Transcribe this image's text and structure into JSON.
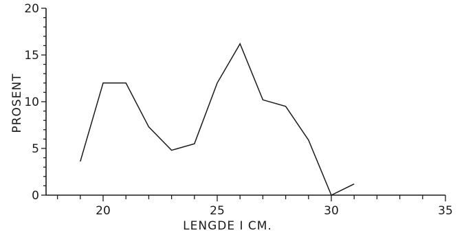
{
  "chart_data": {
    "type": "line",
    "title": "",
    "xlabel": "LENGDE I CM.",
    "ylabel": "PROSENT",
    "xlim": [
      17.5,
      35
    ],
    "ylim": [
      0,
      20
    ],
    "x_ticks": [
      20,
      25,
      30,
      35
    ],
    "x_minor_ticks": [
      18,
      19,
      21,
      22,
      23,
      24,
      26,
      27,
      28,
      29,
      31,
      32,
      33,
      34
    ],
    "y_ticks": [
      0,
      5,
      10,
      15,
      20
    ],
    "y_minor_ticks": [
      1,
      2,
      3,
      4,
      6,
      7,
      8,
      9,
      11,
      12,
      13,
      14,
      16,
      17,
      18,
      19
    ],
    "grid": false,
    "series": [
      {
        "x": [
          19,
          20,
          21,
          22,
          23,
          24,
          25,
          26,
          27,
          28,
          29,
          30,
          31
        ],
        "y": [
          3.6,
          12.0,
          12.0,
          7.3,
          4.8,
          5.5,
          12.0,
          16.2,
          10.2,
          9.5,
          5.9,
          0.0,
          1.2
        ]
      }
    ]
  }
}
